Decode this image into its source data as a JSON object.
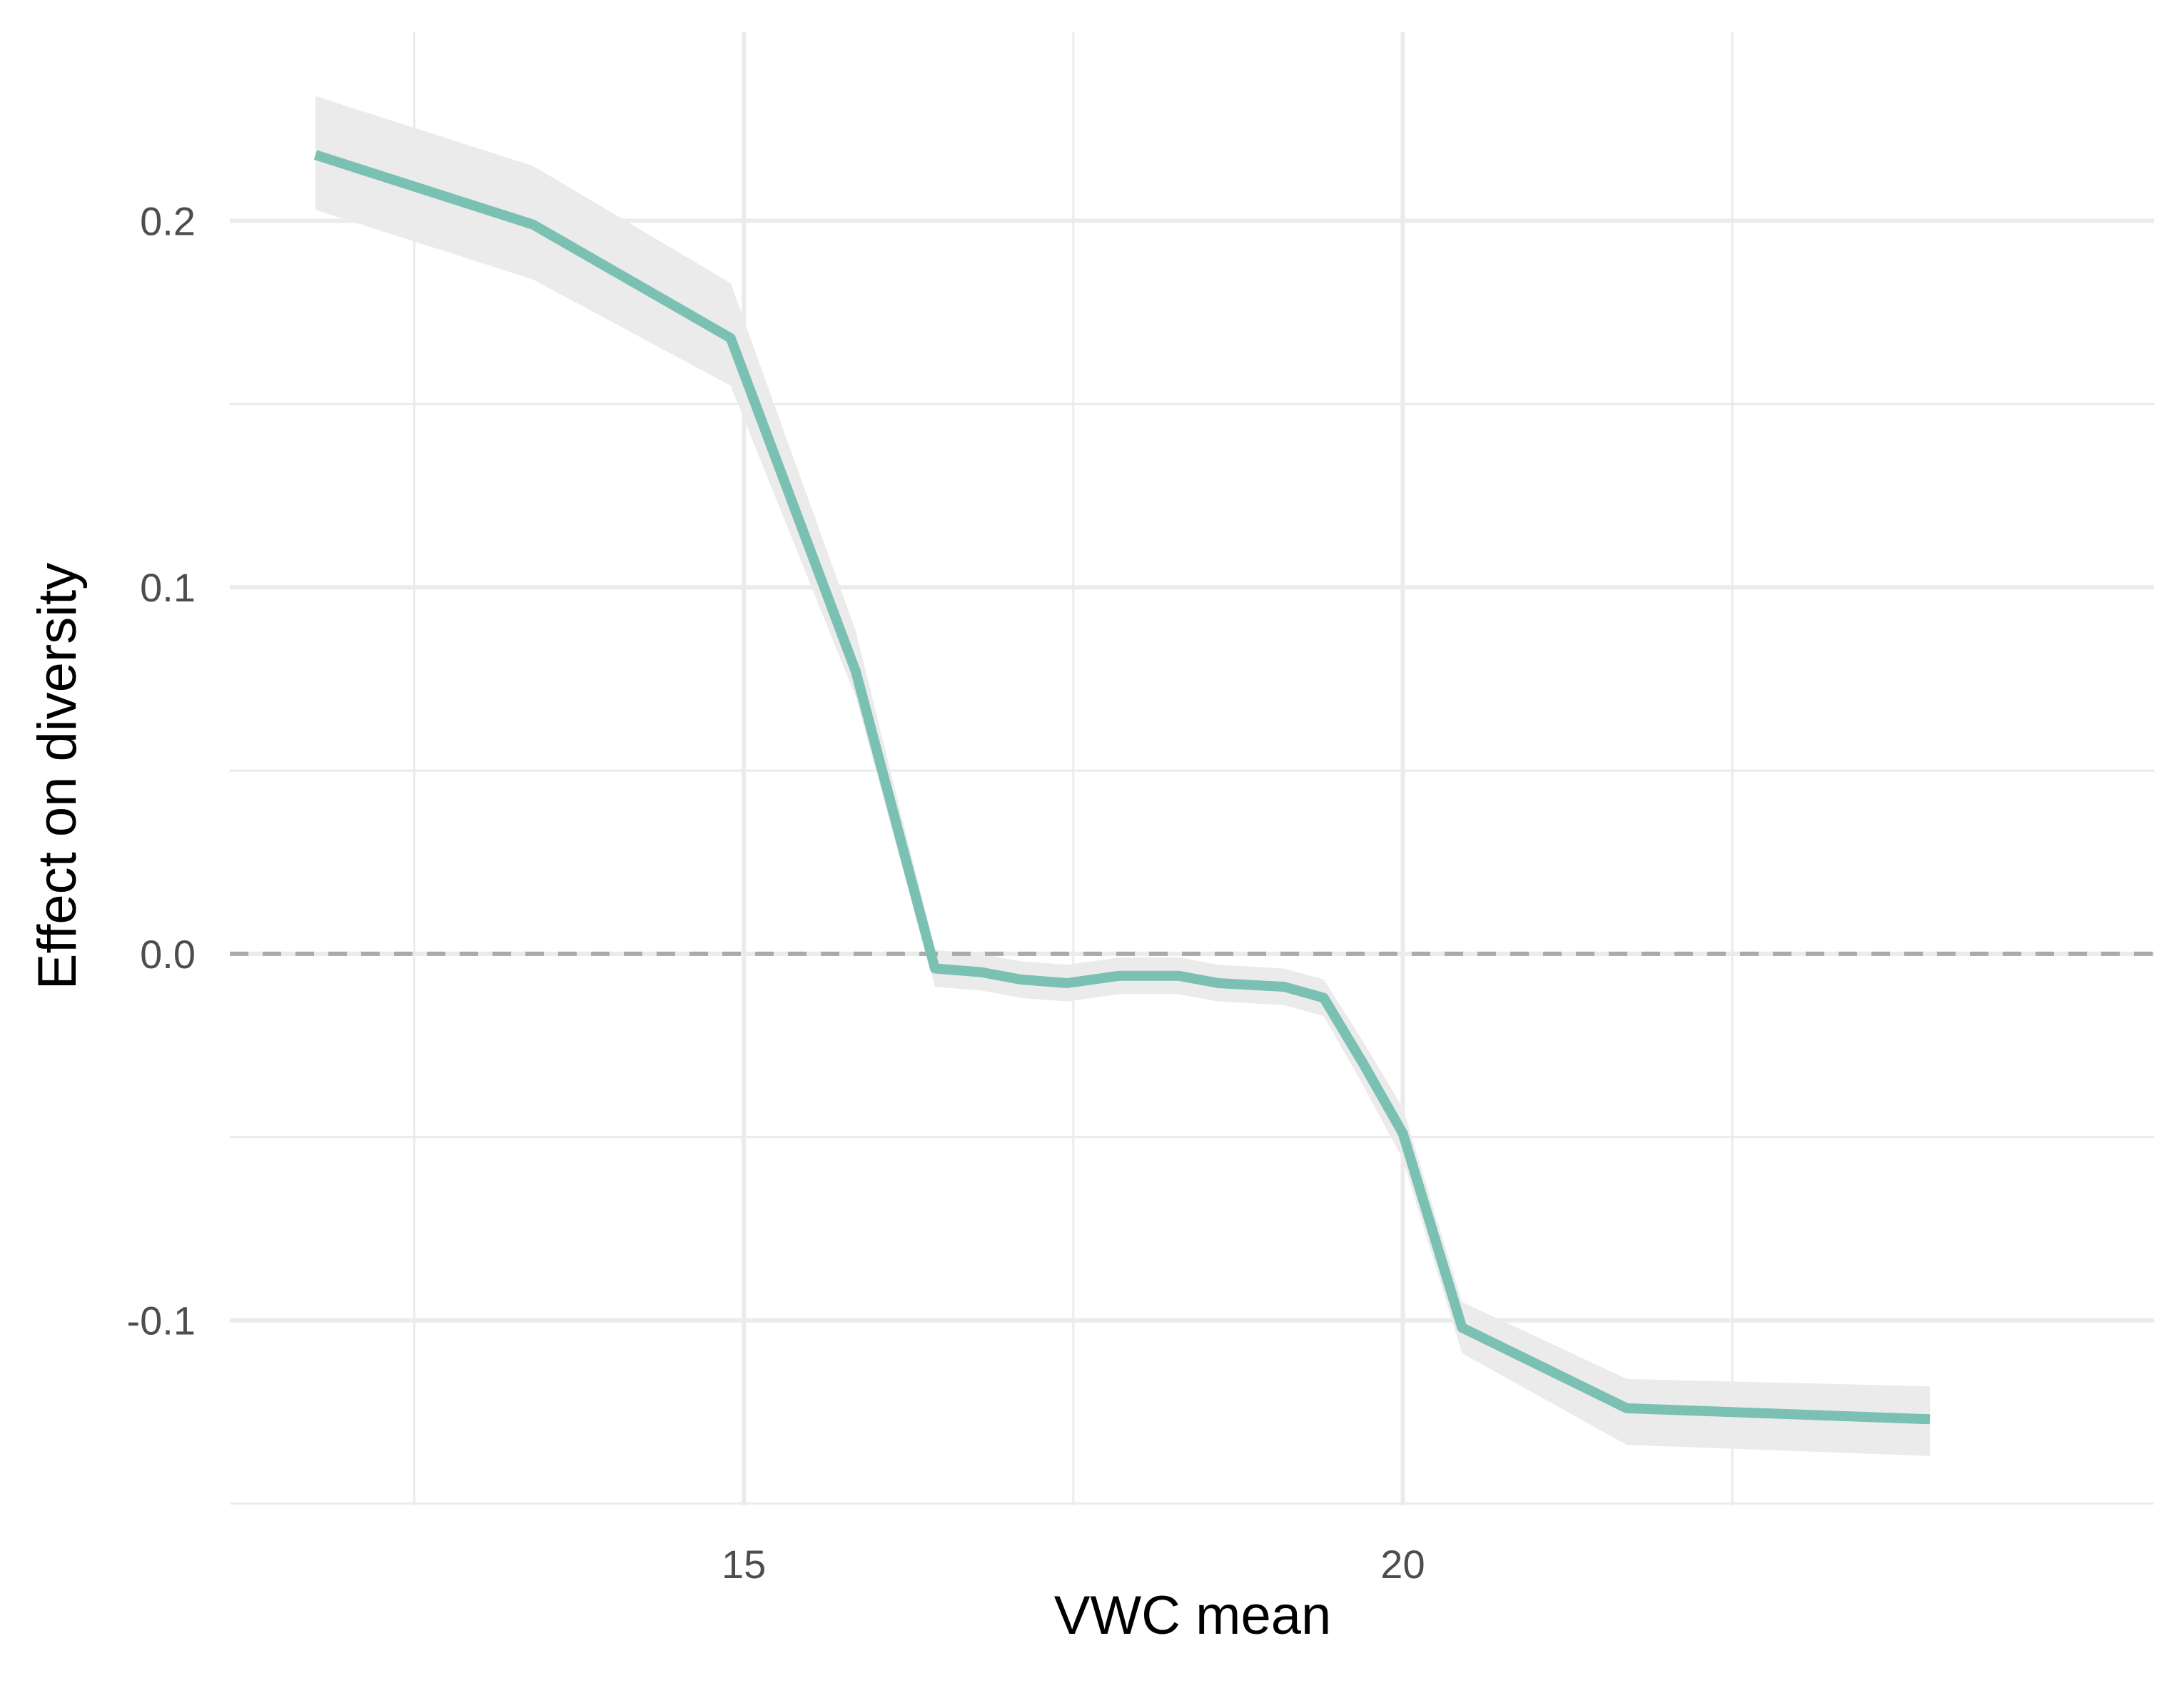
{
  "chart_data": {
    "type": "line",
    "xlabel": "VWC mean",
    "ylabel": "Effect on diversity",
    "xlim": [
      11.1,
      25.7
    ],
    "ylim": [
      -0.1505,
      0.2515
    ],
    "x_ticks": [
      15,
      20
    ],
    "x_tick_labels": [
      "15",
      "20"
    ],
    "x_minor_gridlines": [
      12.5,
      17.5,
      22.5
    ],
    "y_ticks": [
      -0.1,
      0.0,
      0.1,
      0.2
    ],
    "y_tick_labels": [
      "-0.1",
      "0.0",
      "0.1",
      "0.2"
    ],
    "y_minor_gridlines": [
      -0.15,
      -0.05,
      0.05,
      0.15
    ],
    "grid": true,
    "reference_line": {
      "y": 0.0,
      "style": "dashed",
      "color": "#aaaaaa"
    },
    "colors": {
      "line": "#7ac0b3",
      "ribbon": "#ebebeb",
      "grid": "#ebebeb"
    },
    "series": [
      {
        "x": [
          11.75,
          13.4,
          14.9,
          15.85,
          16.45,
          16.8,
          17.1,
          17.45,
          17.85,
          18.3,
          18.6,
          19.1,
          19.4,
          19.7,
          20.0,
          20.45,
          21.7,
          24.0
        ],
        "y": [
          0.218,
          0.199,
          0.168,
          0.077,
          -0.004,
          -0.005,
          -0.007,
          -0.008,
          -0.006,
          -0.006,
          -0.008,
          -0.009,
          -0.012,
          -0.03,
          -0.049,
          -0.102,
          -0.124,
          -0.127
        ],
        "lower": [
          0.203,
          0.184,
          0.155,
          0.07,
          -0.009,
          -0.01,
          -0.012,
          -0.013,
          -0.011,
          -0.011,
          -0.013,
          -0.014,
          -0.017,
          -0.036,
          -0.056,
          -0.109,
          -0.134,
          -0.137
        ],
        "upper": [
          0.234,
          0.215,
          0.183,
          0.088,
          0.001,
          0.0,
          -0.002,
          -0.003,
          -0.001,
          -0.001,
          -0.003,
          -0.004,
          -0.007,
          -0.024,
          -0.042,
          -0.095,
          -0.116,
          -0.118
        ]
      }
    ]
  }
}
